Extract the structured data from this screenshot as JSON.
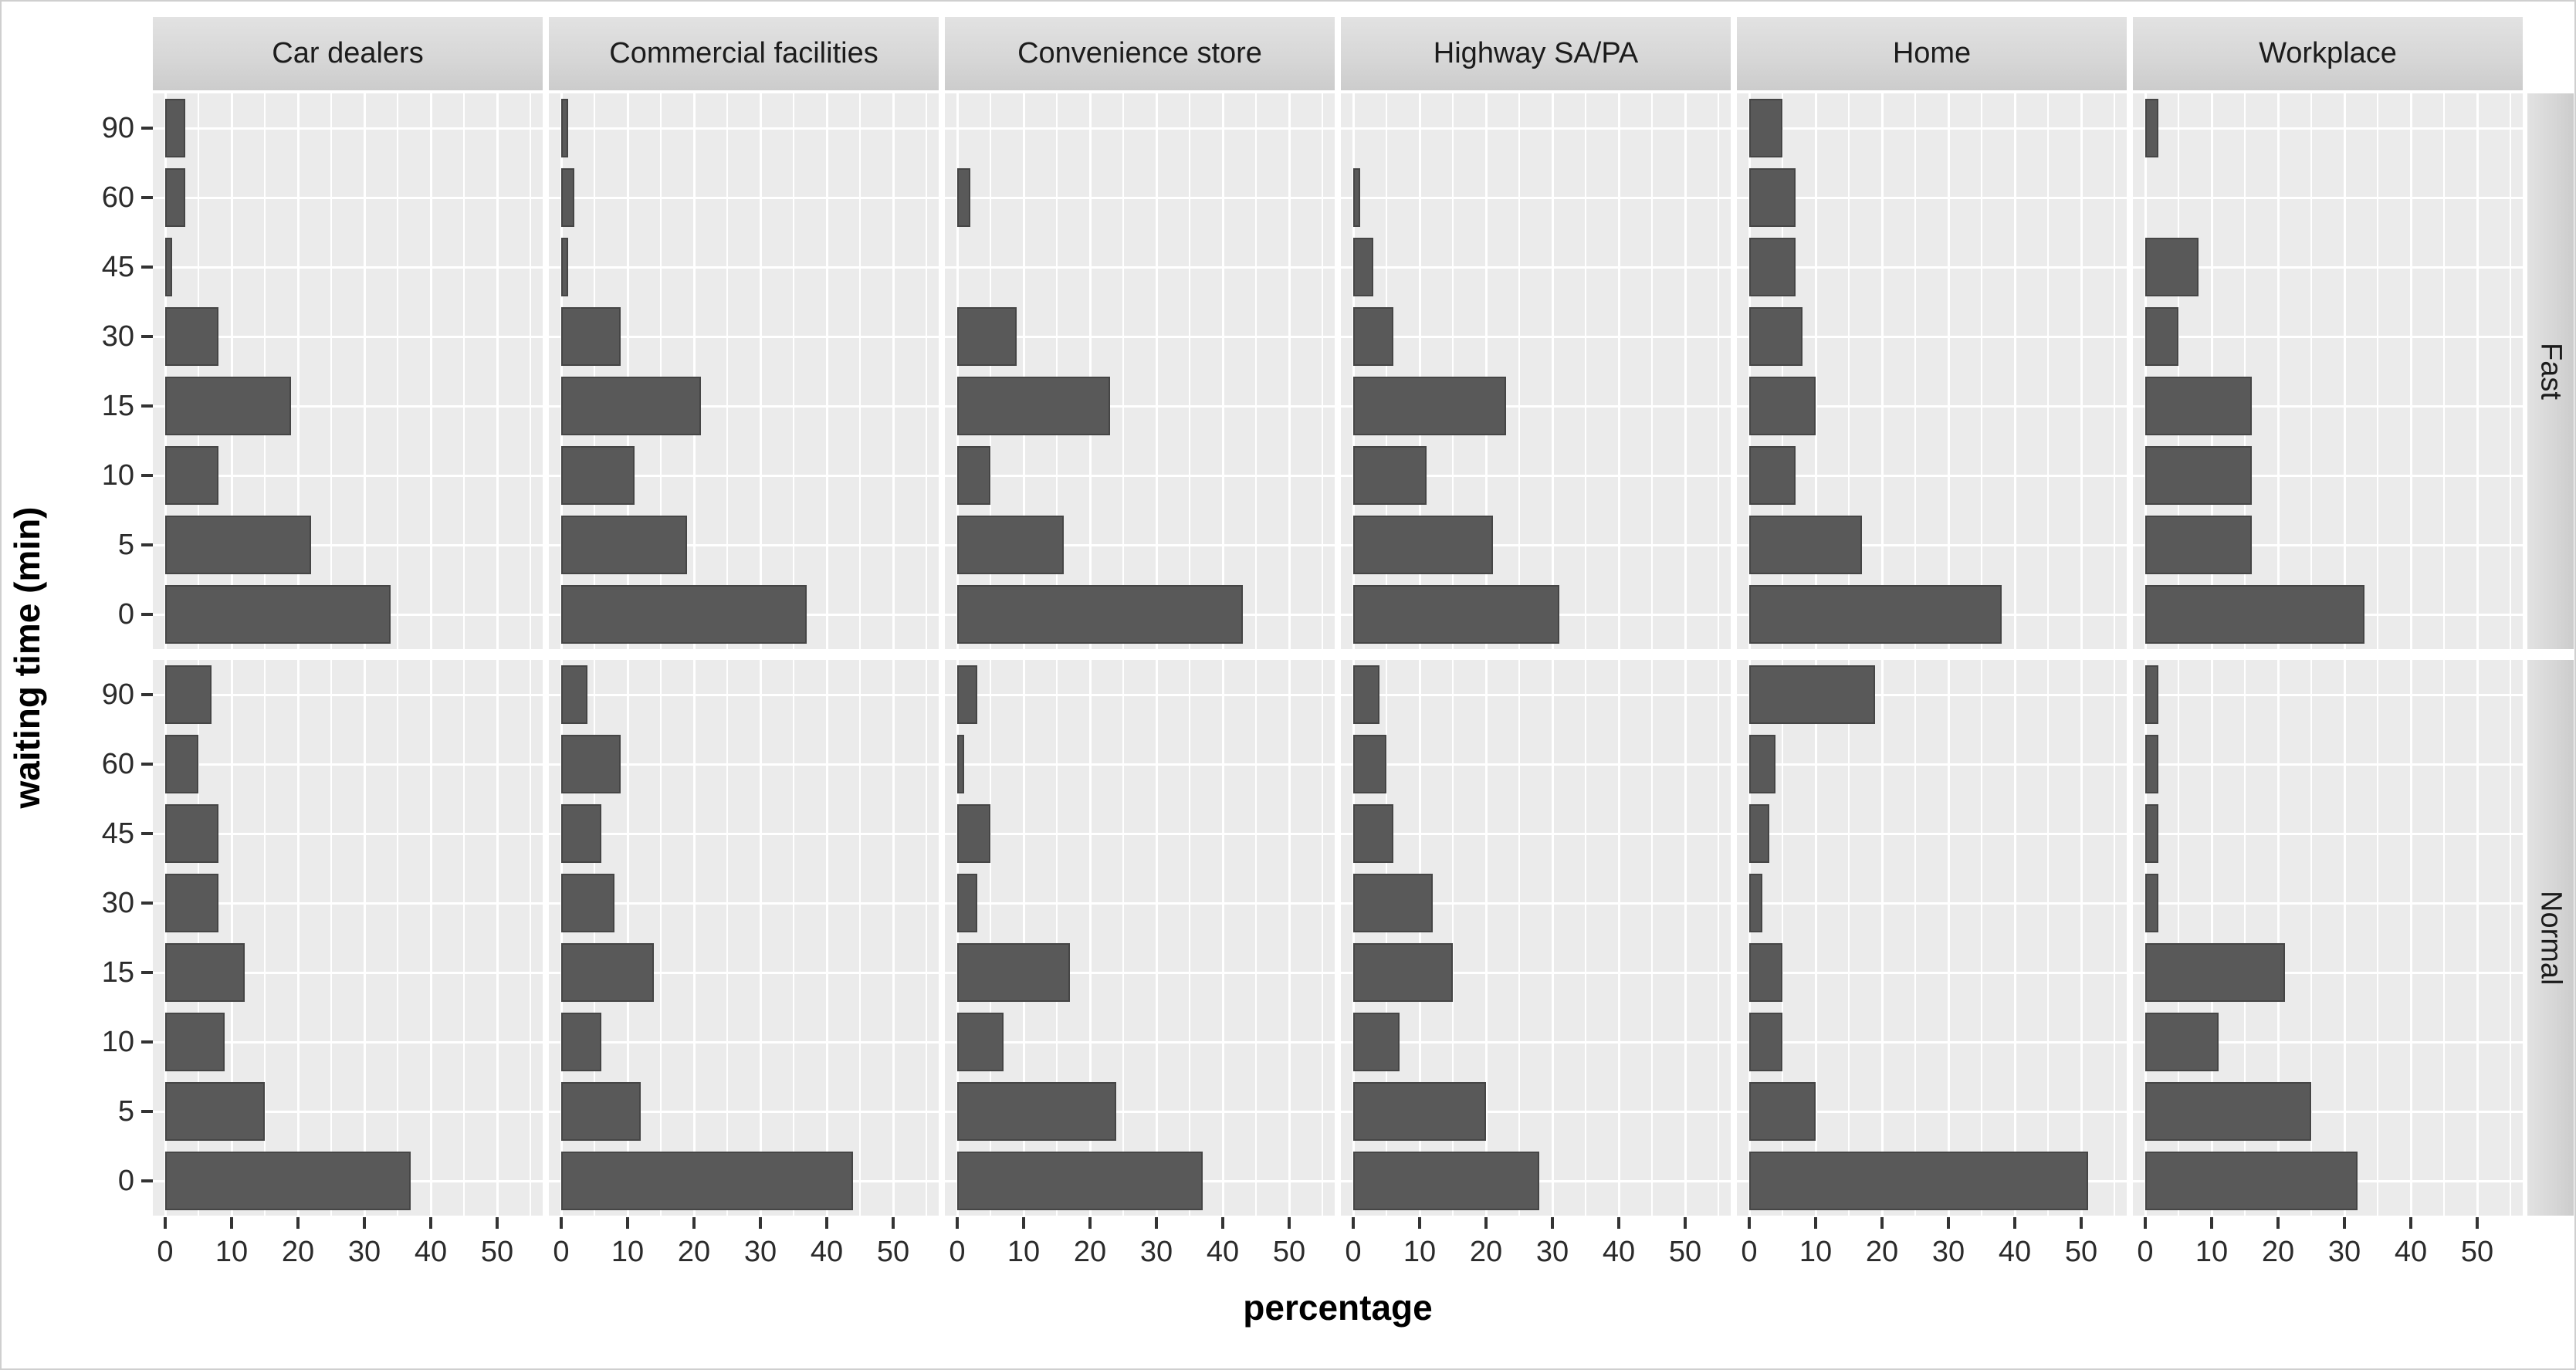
{
  "figure": {
    "y_axis_title": "waiting time (min)",
    "x_axis_title": "percentage",
    "colors": {
      "bar_fill": "#595959",
      "bar_border": "#454545",
      "panel_bg": "#ebebeb",
      "strip_bg": "#d8d8d8",
      "grid_color": "#ffffff",
      "tick_color": "#333333",
      "text_color": "#2b2b2b"
    }
  },
  "chart_data": {
    "type": "bar",
    "orientation": "horizontal",
    "title": "",
    "xlabel": "percentage",
    "ylabel": "waiting time (min)",
    "legend": "none",
    "grid": "white major and minor gridlines on gray panel background",
    "x_ticks": [
      0,
      10,
      20,
      30,
      40,
      50
    ],
    "x_minor_ticks": [
      5,
      15,
      25,
      35,
      45,
      55
    ],
    "xlim": [
      0,
      57
    ],
    "facet_rows": [
      "Fast",
      "Normal"
    ],
    "facet_columns": [
      "Car dealers",
      "Commercial facilities",
      "Convenience store",
      "Highway SA/PA",
      "Home",
      "Workplace"
    ],
    "y_categories_top_to_bottom": [
      "90",
      "60",
      "45",
      "30",
      "15",
      "10",
      "5",
      "0"
    ],
    "value_unit": "percent",
    "panels": [
      {
        "row": "Fast",
        "column": "Car dealers",
        "values_top_to_bottom": [
          3,
          3,
          1,
          8,
          19,
          8,
          22,
          34
        ]
      },
      {
        "row": "Fast",
        "column": "Commercial facilities",
        "values_top_to_bottom": [
          1,
          2,
          1,
          9,
          21,
          11,
          19,
          37
        ]
      },
      {
        "row": "Fast",
        "column": "Convenience store",
        "values_top_to_bottom": [
          0,
          2,
          0,
          9,
          23,
          5,
          16,
          43
        ]
      },
      {
        "row": "Fast",
        "column": "Highway SA/PA",
        "values_top_to_bottom": [
          0,
          1,
          3,
          6,
          23,
          11,
          21,
          31
        ]
      },
      {
        "row": "Fast",
        "column": "Home",
        "values_top_to_bottom": [
          5,
          7,
          7,
          8,
          10,
          7,
          17,
          38
        ]
      },
      {
        "row": "Fast",
        "column": "Workplace",
        "values_top_to_bottom": [
          2,
          0,
          8,
          5,
          16,
          16,
          16,
          33
        ]
      },
      {
        "row": "Normal",
        "column": "Car dealers",
        "values_top_to_bottom": [
          7,
          5,
          8,
          8,
          12,
          9,
          15,
          37
        ]
      },
      {
        "row": "Normal",
        "column": "Commercial facilities",
        "values_top_to_bottom": [
          4,
          9,
          6,
          8,
          14,
          6,
          12,
          44
        ]
      },
      {
        "row": "Normal",
        "column": "Convenience store",
        "values_top_to_bottom": [
          3,
          1,
          5,
          3,
          17,
          7,
          24,
          37
        ]
      },
      {
        "row": "Normal",
        "column": "Highway SA/PA",
        "values_top_to_bottom": [
          4,
          5,
          6,
          12,
          15,
          7,
          20,
          28
        ]
      },
      {
        "row": "Normal",
        "column": "Home",
        "values_top_to_bottom": [
          19,
          4,
          3,
          2,
          5,
          5,
          10,
          51
        ]
      },
      {
        "row": "Normal",
        "column": "Workplace",
        "values_top_to_bottom": [
          2,
          2,
          2,
          2,
          21,
          11,
          25,
          32
        ]
      }
    ]
  }
}
